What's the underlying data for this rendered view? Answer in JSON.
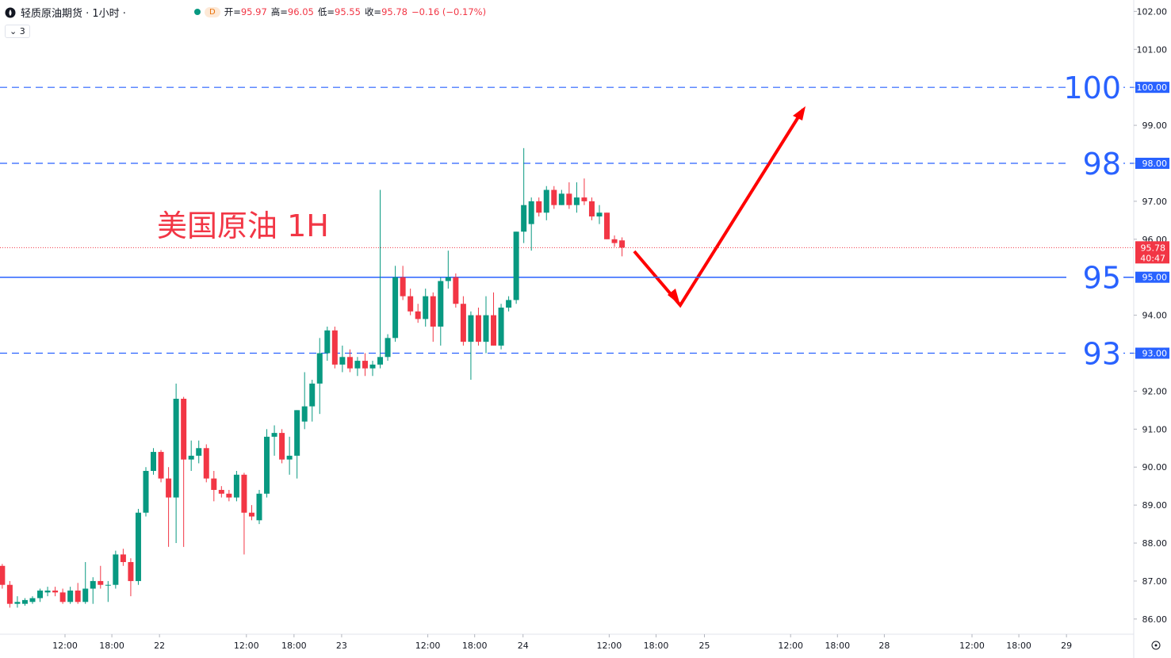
{
  "header": {
    "symbol": "轻质原油期货 · 1小时 ·",
    "badge": "D",
    "interval_count": "3",
    "ohlc_labels": [
      "开=",
      "高=",
      "低=",
      "收="
    ],
    "change": "−0.16 (−0.17%)"
  },
  "chart_data": {
    "type": "candlestick",
    "annotation": "美国原油 1H",
    "up_color": "#089981",
    "down_color": "#f23645",
    "level_color": "#2962ff",
    "open": [
      87.4,
      86.9,
      86.4,
      86.4,
      86.45,
      86.55,
      86.7,
      86.75,
      86.7,
      86.45,
      86.75,
      86.45,
      86.8,
      87.0,
      86.9,
      86.9,
      87.7,
      87.5,
      87.0,
      88.8,
      89.9,
      90.4,
      89.7,
      89.2,
      91.8,
      90.2,
      90.3,
      90.5,
      89.7,
      89.4,
      89.3,
      89.2,
      89.8,
      88.8,
      88.6,
      89.3,
      90.8,
      90.9,
      90.2,
      90.3,
      91.2,
      91.6,
      92.2,
      93.0,
      93.6,
      92.7,
      92.9,
      92.6,
      92.8,
      92.6,
      92.7,
      92.9,
      93.4,
      95.0,
      94.5,
      94.1,
      93.9,
      94.5,
      93.7,
      94.9,
      95.0,
      94.3,
      93.3,
      94.0,
      93.3,
      94.0,
      93.2,
      94.2,
      94.4,
      96.2,
      96.4,
      97.0,
      96.7,
      97.3,
      96.9,
      97.2,
      96.9,
      97.1,
      97.0,
      96.6,
      96.7,
      96.0,
      95.97
    ],
    "high": [
      87.45,
      87.0,
      86.6,
      86.55,
      86.6,
      86.8,
      86.85,
      86.85,
      86.8,
      86.85,
      86.95,
      87.5,
      87.1,
      87.4,
      87.0,
      87.8,
      87.85,
      87.6,
      88.9,
      90.0,
      90.5,
      90.45,
      90.0,
      92.2,
      91.85,
      90.7,
      90.7,
      90.6,
      89.9,
      89.5,
      89.4,
      89.9,
      89.85,
      89.0,
      89.4,
      91.0,
      91.1,
      91.0,
      90.8,
      91.5,
      92.5,
      92.3,
      93.4,
      93.7,
      93.7,
      93.2,
      93.1,
      92.9,
      93.0,
      92.8,
      97.3,
      93.5,
      95.3,
      95.3,
      94.7,
      94.3,
      94.7,
      94.6,
      95.0,
      95.7,
      95.1,
      94.5,
      94.1,
      94.2,
      94.5,
      94.6,
      94.3,
      94.5,
      96.2,
      98.4,
      97.1,
      97.1,
      97.4,
      97.4,
      97.3,
      97.5,
      97.5,
      97.6,
      97.1,
      96.9,
      96.7,
      96.1,
      96.05
    ],
    "low": [
      86.8,
      86.3,
      86.3,
      86.35,
      86.4,
      86.45,
      86.6,
      86.6,
      86.4,
      86.4,
      86.4,
      86.4,
      86.4,
      86.8,
      86.45,
      86.8,
      87.4,
      86.6,
      86.9,
      88.7,
      89.8,
      89.6,
      87.9,
      88.0,
      87.9,
      89.9,
      90.1,
      89.6,
      89.1,
      89.2,
      89.1,
      89.1,
      87.7,
      88.6,
      88.5,
      89.2,
      90.3,
      90.1,
      89.8,
      89.7,
      91.0,
      91.2,
      91.4,
      92.8,
      92.6,
      92.5,
      92.5,
      92.4,
      92.4,
      92.4,
      92.6,
      92.8,
      93.3,
      94.4,
      94.0,
      93.8,
      93.7,
      93.3,
      93.2,
      94.7,
      94.2,
      93.2,
      92.3,
      93.2,
      93.0,
      93.2,
      93.1,
      94.1,
      94.3,
      95.9,
      95.7,
      96.6,
      96.5,
      96.8,
      96.9,
      96.8,
      96.7,
      96.9,
      96.5,
      96.4,
      96.0,
      95.8,
      95.55
    ],
    "close": [
      86.9,
      86.4,
      86.45,
      86.5,
      86.55,
      86.75,
      86.75,
      86.7,
      86.45,
      86.75,
      86.45,
      86.8,
      87.0,
      86.9,
      86.9,
      87.7,
      87.5,
      87.0,
      88.8,
      89.9,
      90.4,
      89.7,
      89.2,
      91.8,
      90.2,
      90.3,
      90.5,
      89.7,
      89.4,
      89.3,
      89.2,
      89.8,
      88.8,
      88.7,
      89.3,
      90.8,
      90.9,
      90.2,
      90.3,
      91.5,
      91.6,
      92.2,
      93.0,
      93.6,
      92.7,
      92.9,
      92.6,
      92.8,
      92.6,
      92.7,
      92.9,
      93.4,
      95.0,
      94.5,
      94.1,
      93.9,
      94.5,
      93.7,
      94.9,
      95.0,
      94.3,
      93.3,
      94.0,
      93.3,
      94.0,
      93.2,
      94.2,
      94.4,
      96.2,
      96.9,
      97.0,
      96.7,
      97.3,
      96.9,
      97.2,
      96.9,
      97.1,
      97.0,
      96.6,
      96.7,
      96.0,
      95.9,
      95.78
    ],
    "xlim": [
      -0.3,
      149.7
    ],
    "xticks": [
      {
        "value": 8.3,
        "label": "12:00"
      },
      {
        "value": 14.5,
        "label": "18:00"
      },
      {
        "value": 20.8,
        "label": "22"
      },
      {
        "value": 32.3,
        "label": "12:00"
      },
      {
        "value": 38.6,
        "label": "18:00"
      },
      {
        "value": 44.9,
        "label": "23"
      },
      {
        "value": 56.3,
        "label": "12:00"
      },
      {
        "value": 62.5,
        "label": "18:00"
      },
      {
        "value": 68.9,
        "label": "24"
      },
      {
        "value": 80.3,
        "label": "12:00"
      },
      {
        "value": 86.5,
        "label": "18:00"
      },
      {
        "value": 92.9,
        "label": "25"
      },
      {
        "value": 104.3,
        "label": "12:00"
      },
      {
        "value": 110.5,
        "label": "18:00"
      },
      {
        "value": 116.7,
        "label": "28"
      },
      {
        "value": 128.3,
        "label": "12:00"
      },
      {
        "value": 134.5,
        "label": "18:00"
      },
      {
        "value": 140.8,
        "label": "29"
      }
    ],
    "ylim": [
      85.6,
      102.3
    ],
    "yticks": [
      {
        "value": 86,
        "label": "86.00"
      },
      {
        "value": 87,
        "label": "87.00"
      },
      {
        "value": 88,
        "label": "88.00"
      },
      {
        "value": 89,
        "label": "89.00"
      },
      {
        "value": 90,
        "label": "90.00"
      },
      {
        "value": 91,
        "label": "91.00"
      },
      {
        "value": 92,
        "label": "92.00"
      },
      {
        "value": 93,
        "label": "93.00"
      },
      {
        "value": 94,
        "label": "94.00"
      },
      {
        "value": 96,
        "label": "96.00"
      },
      {
        "value": 97,
        "label": "97.00"
      },
      {
        "value": 98,
        "label": "98.00"
      },
      {
        "value": 99,
        "label": "99.00"
      },
      {
        "value": 100,
        "label": "100.00"
      },
      {
        "value": 101,
        "label": "101.00"
      },
      {
        "value": 102,
        "label": "102.00"
      }
    ],
    "levels": [
      {
        "value": 100,
        "label": "100",
        "axis_label": "100.00",
        "style": "dashed"
      },
      {
        "value": 98,
        "label": "98",
        "axis_label": "98.00",
        "style": "dashed"
      },
      {
        "value": 95,
        "label": "95",
        "axis_label": "95.00",
        "style": "solid"
      },
      {
        "value": 93,
        "label": "93",
        "axis_label": "93.00",
        "style": "dashed"
      }
    ],
    "current_price": {
      "value": 95.78,
      "countdown": "40:47"
    }
  }
}
